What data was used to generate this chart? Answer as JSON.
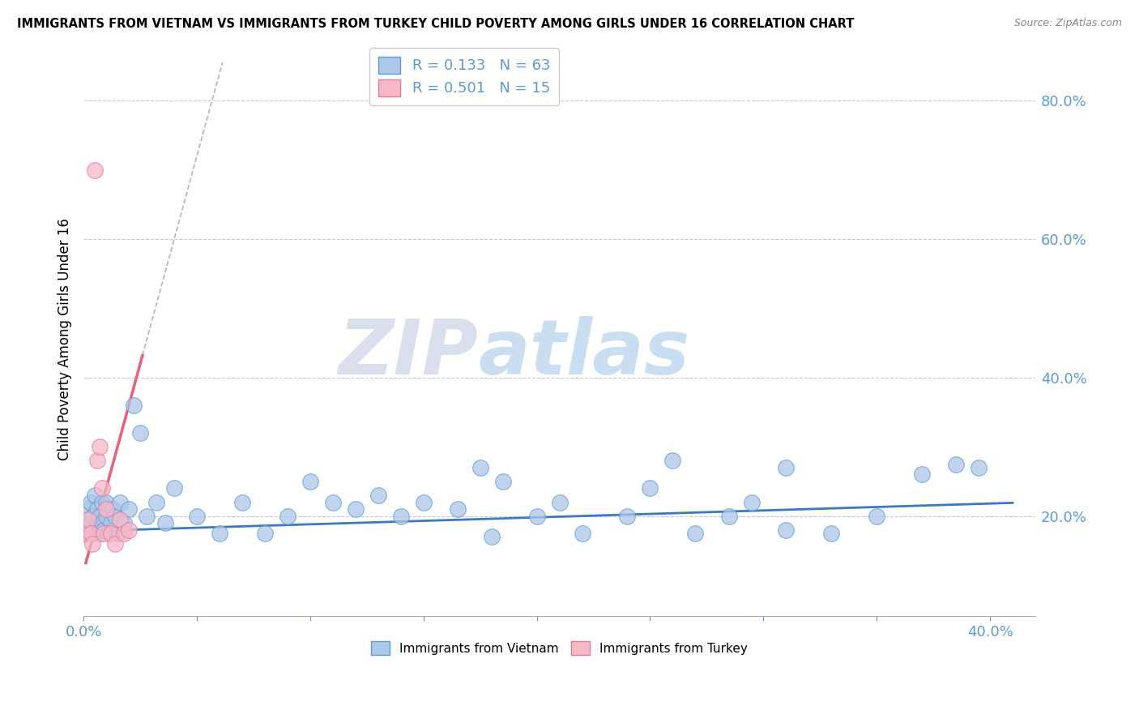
{
  "title": "IMMIGRANTS FROM VIETNAM VS IMMIGRANTS FROM TURKEY CHILD POVERTY AMONG GIRLS UNDER 16 CORRELATION CHART",
  "source": "Source: ZipAtlas.com",
  "ylabel": "Child Poverty Among Girls Under 16",
  "xlim": [
    0.0,
    0.42
  ],
  "ylim": [
    0.055,
    0.855
  ],
  "xticks": [
    0.0,
    0.05,
    0.1,
    0.15,
    0.2,
    0.25,
    0.3,
    0.35,
    0.4
  ],
  "yticks_right": [
    0.2,
    0.4,
    0.6,
    0.8
  ],
  "ytick_labels_right": [
    "20.0%",
    "40.0%",
    "60.0%",
    "80.0%"
  ],
  "xtick_labels": [
    "0.0%",
    "",
    "",
    "",
    "",
    "",
    "",
    "",
    "40.0%"
  ],
  "vietnam_color": "#aec6e8",
  "turkey_color": "#f7b8c8",
  "vietnam_edge_color": "#5a9fd4",
  "turkey_edge_color": "#e87898",
  "vietnam_line_color": "#3a7abf",
  "turkey_line_color": "#e8607a",
  "turkey_dash_color": "#d0a0b0",
  "watermark_zip": "ZIP",
  "watermark_atlas": "atlas",
  "legend_vietnam": "Immigrants from Vietnam",
  "legend_turkey": "Immigrants from Turkey",
  "R_vietnam": 0.133,
  "N_vietnam": 63,
  "R_turkey": 0.501,
  "N_turkey": 15,
  "vietnam_x": [
    0.001,
    0.002,
    0.002,
    0.003,
    0.003,
    0.004,
    0.004,
    0.005,
    0.005,
    0.006,
    0.006,
    0.007,
    0.007,
    0.008,
    0.008,
    0.009,
    0.01,
    0.01,
    0.011,
    0.012,
    0.013,
    0.014,
    0.015,
    0.016,
    0.018,
    0.02,
    0.022,
    0.025,
    0.028,
    0.032,
    0.036,
    0.04,
    0.05,
    0.06,
    0.07,
    0.08,
    0.09,
    0.1,
    0.11,
    0.12,
    0.13,
    0.14,
    0.15,
    0.165,
    0.175,
    0.185,
    0.2,
    0.21,
    0.22,
    0.24,
    0.25,
    0.26,
    0.27,
    0.285,
    0.295,
    0.31,
    0.33,
    0.35,
    0.37,
    0.385,
    0.395,
    0.31,
    0.18
  ],
  "vietnam_y": [
    0.175,
    0.18,
    0.21,
    0.19,
    0.22,
    0.2,
    0.175,
    0.23,
    0.18,
    0.19,
    0.21,
    0.175,
    0.2,
    0.19,
    0.22,
    0.18,
    0.2,
    0.22,
    0.175,
    0.19,
    0.21,
    0.2,
    0.175,
    0.22,
    0.19,
    0.21,
    0.36,
    0.32,
    0.2,
    0.22,
    0.19,
    0.24,
    0.2,
    0.175,
    0.22,
    0.175,
    0.2,
    0.25,
    0.22,
    0.21,
    0.23,
    0.2,
    0.22,
    0.21,
    0.27,
    0.25,
    0.2,
    0.22,
    0.175,
    0.2,
    0.24,
    0.28,
    0.175,
    0.2,
    0.22,
    0.27,
    0.175,
    0.2,
    0.26,
    0.275,
    0.27,
    0.18,
    0.17
  ],
  "turkey_x": [
    0.001,
    0.002,
    0.003,
    0.004,
    0.005,
    0.006,
    0.007,
    0.008,
    0.009,
    0.01,
    0.012,
    0.014,
    0.016,
    0.018,
    0.02
  ],
  "turkey_y": [
    0.175,
    0.195,
    0.175,
    0.16,
    0.7,
    0.28,
    0.3,
    0.24,
    0.175,
    0.21,
    0.175,
    0.16,
    0.195,
    0.175,
    0.18
  ],
  "background_color": "#ffffff",
  "grid_color": "#c8c8d8"
}
